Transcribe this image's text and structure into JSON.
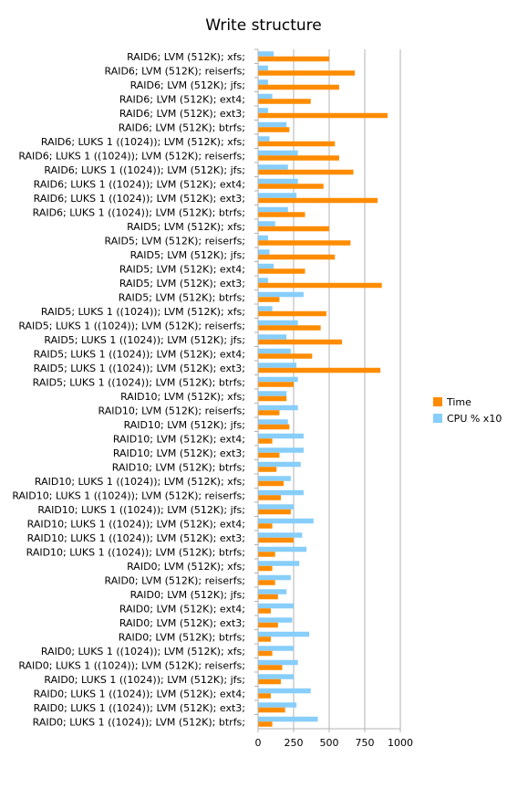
{
  "chart_data": {
    "type": "bar",
    "orientation": "horizontal",
    "title": "Write structure",
    "xlabel": "",
    "ylabel": "",
    "xlim": [
      0,
      1000
    ],
    "xticks": [
      0,
      250,
      500,
      750,
      1000
    ],
    "grid": true,
    "legend_position": "right",
    "categories": [
      "RAID6; LVM (512K); xfs;",
      "RAID6; LVM (512K); reiserfs;",
      "RAID6; LVM (512K); jfs;",
      "RAID6; LVM (512K); ext4;",
      "RAID6; LVM (512K); ext3;",
      "RAID6; LVM (512K); btrfs;",
      "RAID6; LUKS 1 ((1024)); LVM (512K); xfs;",
      "RAID6; LUKS 1 ((1024)); LVM (512K); reiserfs;",
      "RAID6; LUKS 1 ((1024)); LVM (512K); jfs;",
      "RAID6; LUKS 1 ((1024)); LVM (512K); ext4;",
      "RAID6; LUKS 1 ((1024)); LVM (512K); ext3;",
      "RAID6; LUKS 1 ((1024)); LVM (512K); btrfs;",
      "RAID5; LVM (512K); xfs;",
      "RAID5; LVM (512K); reiserfs;",
      "RAID5; LVM (512K); jfs;",
      "RAID5; LVM (512K); ext4;",
      "RAID5; LVM (512K); ext3;",
      "RAID5; LVM (512K); btrfs;",
      "RAID5; LUKS 1 ((1024)); LVM (512K); xfs;",
      "RAID5; LUKS 1 ((1024)); LVM (512K); reiserfs;",
      "RAID5; LUKS 1 ((1024)); LVM (512K); jfs;",
      "RAID5; LUKS 1 ((1024)); LVM (512K); ext4;",
      "RAID5; LUKS 1 ((1024)); LVM (512K); ext3;",
      "RAID5; LUKS 1 ((1024)); LVM (512K); btrfs;",
      "RAID10; LVM (512K); xfs;",
      "RAID10; LVM (512K); reiserfs;",
      "RAID10; LVM (512K); jfs;",
      "RAID10; LVM (512K); ext4;",
      "RAID10; LVM (512K); ext3;",
      "RAID10; LVM (512K); btrfs;",
      "RAID10; LUKS 1 ((1024)); LVM (512K); xfs;",
      "RAID10; LUKS 1 ((1024)); LVM (512K); reiserfs;",
      "RAID10; LUKS 1 ((1024)); LVM (512K); jfs;",
      "RAID10; LUKS 1 ((1024)); LVM (512K); ext4;",
      "RAID10; LUKS 1 ((1024)); LVM (512K); ext3;",
      "RAID10; LUKS 1 ((1024)); LVM (512K); btrfs;",
      "RAID0; LVM (512K); xfs;",
      "RAID0; LVM (512K); reiserfs;",
      "RAID0; LVM (512K); jfs;",
      "RAID0; LVM (512K); ext4;",
      "RAID0; LVM (512K); ext3;",
      "RAID0; LVM (512K); btrfs;",
      "RAID0; LUKS 1 ((1024)); LVM (512K); xfs;",
      "RAID0; LUKS 1 ((1024)); LVM (512K); reiserfs;",
      "RAID0; LUKS 1 ((1024)); LVM (512K); jfs;",
      "RAID0; LUKS 1 ((1024)); LVM (512K); ext4;",
      "RAID0; LUKS 1 ((1024)); LVM (512K); ext3;",
      "RAID0; LUKS 1 ((1024)); LVM (512K); btrfs;"
    ],
    "series": [
      {
        "name": "Time",
        "color": "#ff8c00",
        "values": [
          500,
          680,
          570,
          370,
          910,
          220,
          540,
          570,
          670,
          460,
          840,
          330,
          500,
          650,
          540,
          330,
          870,
          150,
          480,
          440,
          590,
          380,
          860,
          250,
          200,
          150,
          220,
          100,
          150,
          130,
          180,
          160,
          230,
          100,
          250,
          120,
          100,
          120,
          140,
          90,
          140,
          90,
          100,
          170,
          160,
          90,
          190,
          100
        ]
      },
      {
        "name": "CPU % x10",
        "color": "#87cefa",
        "values": [
          110,
          70,
          70,
          100,
          70,
          200,
          80,
          280,
          210,
          280,
          270,
          210,
          120,
          70,
          80,
          110,
          70,
          320,
          100,
          280,
          200,
          230,
          270,
          280,
          200,
          280,
          210,
          320,
          320,
          300,
          230,
          320,
          250,
          390,
          310,
          340,
          290,
          230,
          200,
          250,
          240,
          360,
          250,
          280,
          250,
          370,
          270,
          420
        ]
      }
    ]
  }
}
